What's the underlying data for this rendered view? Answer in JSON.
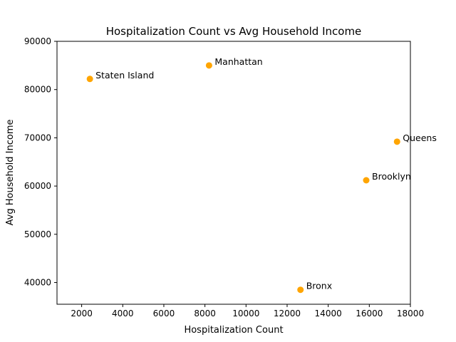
{
  "chart_data": {
    "type": "scatter",
    "title": "Hospitalization Count vs Avg Household Income",
    "xlabel": "Hospitalization Count",
    "ylabel": "Avg Household Income",
    "xlim": [
      800,
      18000
    ],
    "ylim": [
      35500,
      90000
    ],
    "x_ticks": [
      2000,
      4000,
      6000,
      8000,
      10000,
      12000,
      14000,
      16000,
      18000
    ],
    "y_ticks": [
      40000,
      50000,
      60000,
      70000,
      80000,
      90000
    ],
    "grid": false,
    "marker_color": "#ffa500",
    "points": [
      {
        "label": "Staten Island",
        "x": 2400,
        "y": 82200
      },
      {
        "label": "Manhattan",
        "x": 8200,
        "y": 85000
      },
      {
        "label": "Queens",
        "x": 17350,
        "y": 69200
      },
      {
        "label": "Brooklyn",
        "x": 15850,
        "y": 61200
      },
      {
        "label": "Bronx",
        "x": 12650,
        "y": 38500
      }
    ]
  }
}
